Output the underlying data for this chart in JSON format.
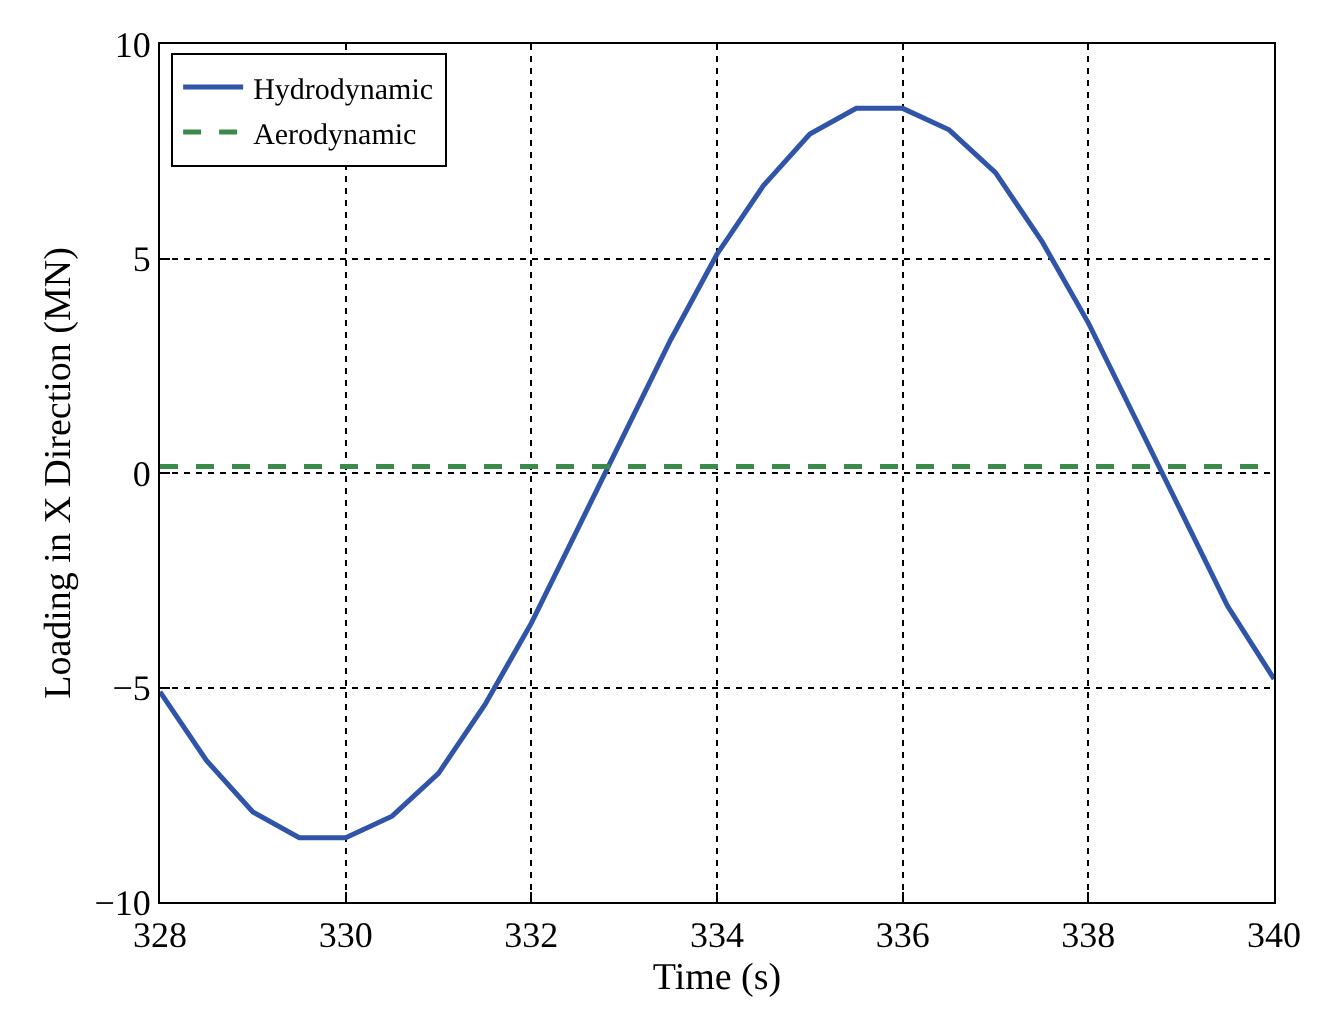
{
  "chart_data": {
    "type": "line",
    "xlabel": "Time (s)",
    "ylabel": "Loading in X Direction (MN)",
    "x": [
      328,
      328.5,
      329,
      329.5,
      330,
      330.5,
      331,
      331.5,
      332,
      332.5,
      333,
      333.5,
      334,
      334.5,
      335,
      335.5,
      336,
      336.5,
      337,
      337.5,
      338,
      338.5,
      339,
      339.5,
      340
    ],
    "series": [
      {
        "name": "Hydrodynamic",
        "color": "#3054a8",
        "line_style": "solid",
        "values": [
          -5.1,
          -6.7,
          -7.9,
          -8.5,
          -8.5,
          -8.0,
          -7.0,
          -5.4,
          -3.5,
          -1.3,
          0.9,
          3.1,
          5.1,
          6.7,
          7.9,
          8.5,
          8.5,
          8.0,
          7.0,
          5.4,
          3.5,
          1.3,
          -0.9,
          -3.1,
          -4.8
        ]
      },
      {
        "name": "Aerodynamic",
        "color": "#3a8a4a",
        "line_style": "dashed",
        "values": [
          0.15,
          0.15,
          0.15,
          0.15,
          0.15,
          0.15,
          0.15,
          0.15,
          0.15,
          0.15,
          0.15,
          0.15,
          0.15,
          0.15,
          0.15,
          0.15,
          0.15,
          0.15,
          0.15,
          0.15,
          0.15,
          0.15,
          0.15,
          0.15,
          0.15
        ]
      }
    ],
    "xlim": [
      328,
      340
    ],
    "xticks": [
      328,
      330,
      332,
      334,
      336,
      338,
      340
    ],
    "ylim": [
      -10,
      10
    ],
    "yticks": [
      {
        "value": -10,
        "label": "−10"
      },
      {
        "value": -5,
        "label": "−5"
      },
      0,
      5,
      10
    ],
    "grid": true,
    "legend": "top left",
    "marker": "none"
  }
}
